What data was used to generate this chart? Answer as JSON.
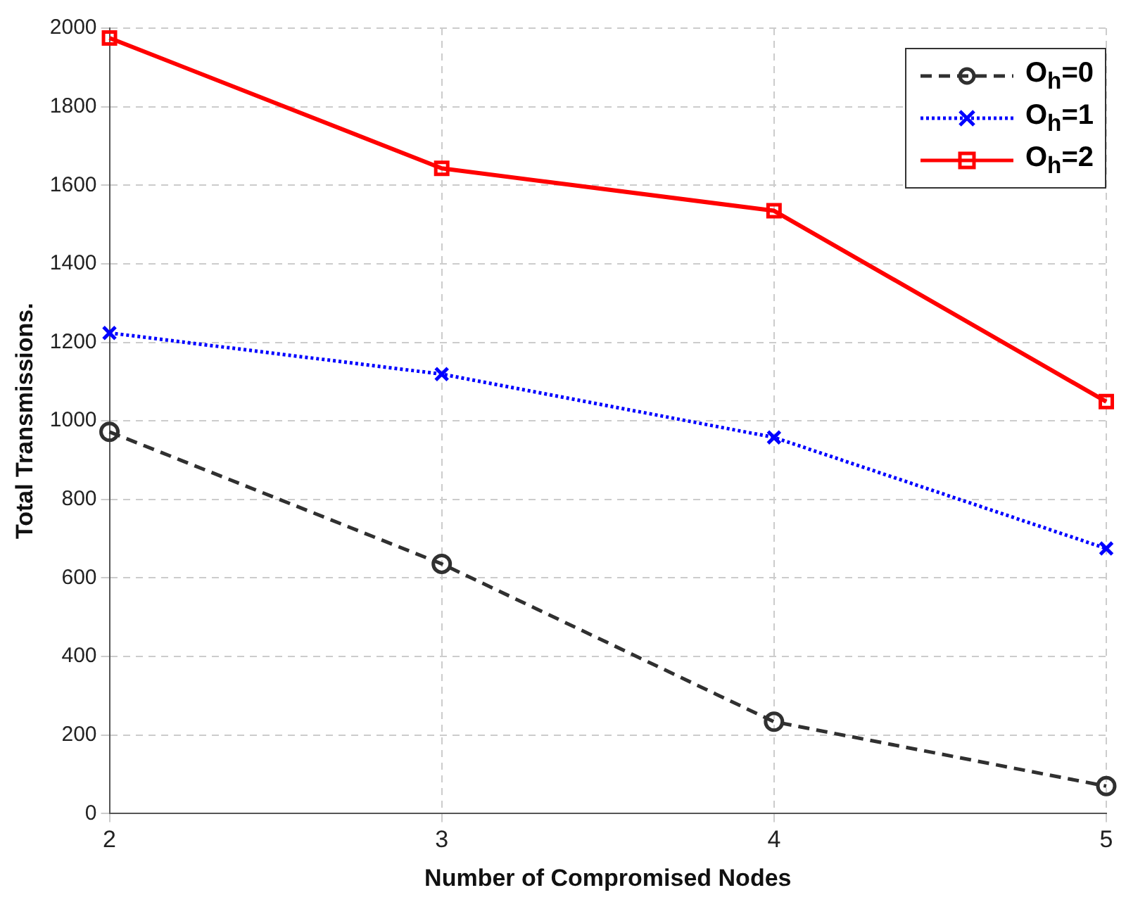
{
  "chart_data": {
    "type": "line",
    "xlabel": "Number of Compromised Nodes",
    "ylabel": "Total Transmissions.",
    "x": [
      2,
      3,
      4,
      5
    ],
    "xlim": [
      2,
      5
    ],
    "xticks": [
      2,
      3,
      4,
      5
    ],
    "ylim": [
      0,
      2000
    ],
    "yticks": [
      0,
      200,
      400,
      600,
      800,
      1000,
      1200,
      1400,
      1600,
      1800,
      2000
    ],
    "grid": true,
    "legend": "top right",
    "series": [
      {
        "name": "O$_{h}$=0",
        "color": "#303030",
        "values": [
          972,
          636,
          234,
          70
        ],
        "marker": "circle",
        "line_style": "dashed"
      },
      {
        "name": "O$_{h}$=1",
        "color": "#0000ff",
        "values": [
          1224,
          1119,
          958,
          675
        ],
        "marker": "cross",
        "line_style": "dotted"
      },
      {
        "name": "O$_{h}$=2",
        "color": "#ff0000",
        "values": [
          1975,
          1643,
          1535,
          1049
        ],
        "marker": "square",
        "line_style": "solid"
      }
    ]
  }
}
